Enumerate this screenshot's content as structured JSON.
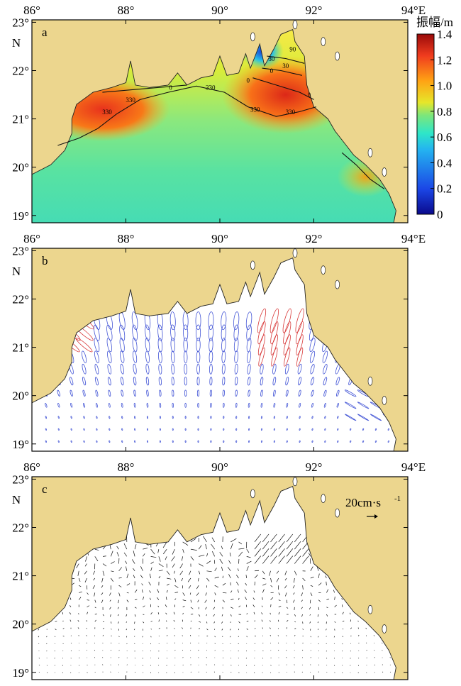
{
  "x_axis": {
    "ticks": [
      {
        "value": 86,
        "label": "86°"
      },
      {
        "value": 88,
        "label": "88°"
      },
      {
        "value": 90,
        "label": "90°"
      },
      {
        "value": 92,
        "label": "92°"
      },
      {
        "value": 94,
        "label": "94°E"
      }
    ],
    "range": [
      86,
      94
    ]
  },
  "y_axis": {
    "ticks": [
      {
        "value": 23,
        "label": "23°"
      },
      {
        "value": 22,
        "label": "22°"
      },
      {
        "value": 21,
        "label": "21°"
      },
      {
        "value": 20,
        "label": "20°"
      },
      {
        "value": 19,
        "label": "19°"
      }
    ],
    "n_label": "N",
    "range": [
      18.85,
      23.05
    ]
  },
  "panels": [
    {
      "label": "a",
      "content": "tidal amplitude with co-phase lines"
    },
    {
      "label": "b",
      "content": "tidal current ellipses"
    },
    {
      "label": "c",
      "content": "residual current vectors"
    }
  ],
  "colorbar": {
    "title": "振幅/m",
    "range": [
      0,
      1.4
    ],
    "ticks": [
      "1.4",
      "1.2",
      "1.0",
      "0.8",
      "0.6",
      "0.4",
      "0.2",
      "0"
    ],
    "colors": [
      "#0a0a8c",
      "#1b46e6",
      "#24b4f0",
      "#2ee6c8",
      "#7de67a",
      "#e6e62a",
      "#ffa314",
      "#f03c1e",
      "#9a0a0a"
    ]
  },
  "contour_labels": [
    "330",
    "330",
    "330",
    "330",
    "330",
    "0",
    "0",
    "0",
    "0",
    "30",
    "30",
    "90"
  ],
  "scale_label": "20cm·s",
  "scale_exponent": "-1",
  "colors": {
    "land": "#ecd68e",
    "ellipse_ccw": "#4456d6",
    "ellipse_cw": "#d83a3a",
    "vector": "#111111"
  }
}
